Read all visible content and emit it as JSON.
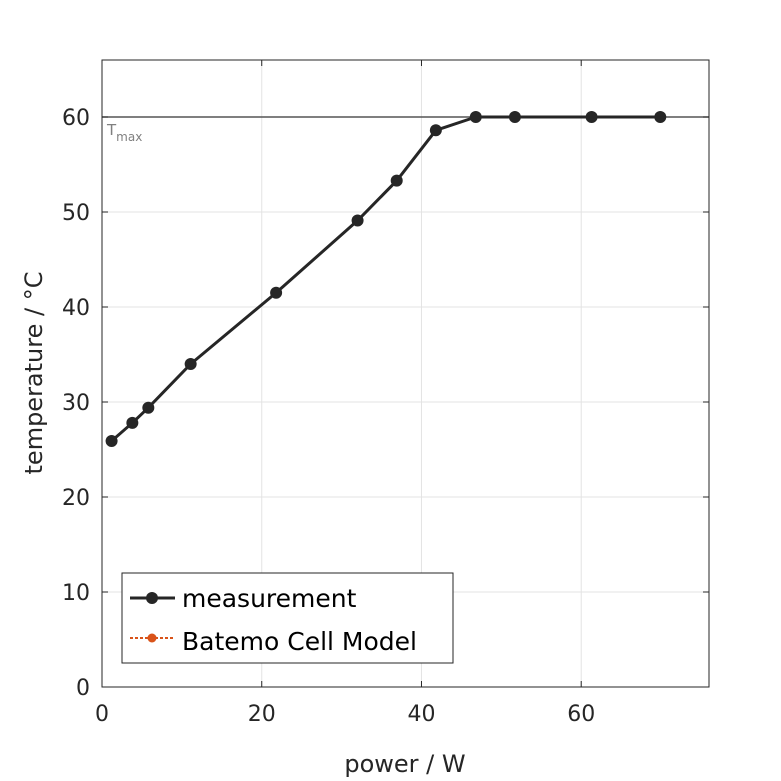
{
  "chart_data": {
    "type": "line",
    "xlabel": "power / W",
    "ylabel": "temperature / °C",
    "xlim": [
      0,
      76
    ],
    "ylim": [
      0,
      66
    ],
    "xticks": [
      0,
      20,
      40,
      60
    ],
    "yticks": [
      0,
      10,
      20,
      30,
      40,
      50,
      60
    ],
    "grid": true,
    "legend_position": "bottom-left",
    "series": [
      {
        "name": "measurement",
        "color": "#262626",
        "marker": "circle",
        "x": [
          1.2,
          3.8,
          5.8,
          11.1,
          21.8,
          32.0,
          36.9,
          41.8,
          46.8,
          51.7,
          61.3,
          69.9
        ],
        "y": [
          25.9,
          27.8,
          29.4,
          34.0,
          41.5,
          49.1,
          53.3,
          58.6,
          60.0,
          60.0,
          60.0,
          60.0
        ]
      },
      {
        "name": "Batemo Cell Model",
        "color": "#d95319",
        "marker": "circle",
        "x": [],
        "y": []
      }
    ],
    "reference_line": {
      "y": 60,
      "label_main": "T",
      "label_sub": "max",
      "color": "#555555"
    }
  }
}
